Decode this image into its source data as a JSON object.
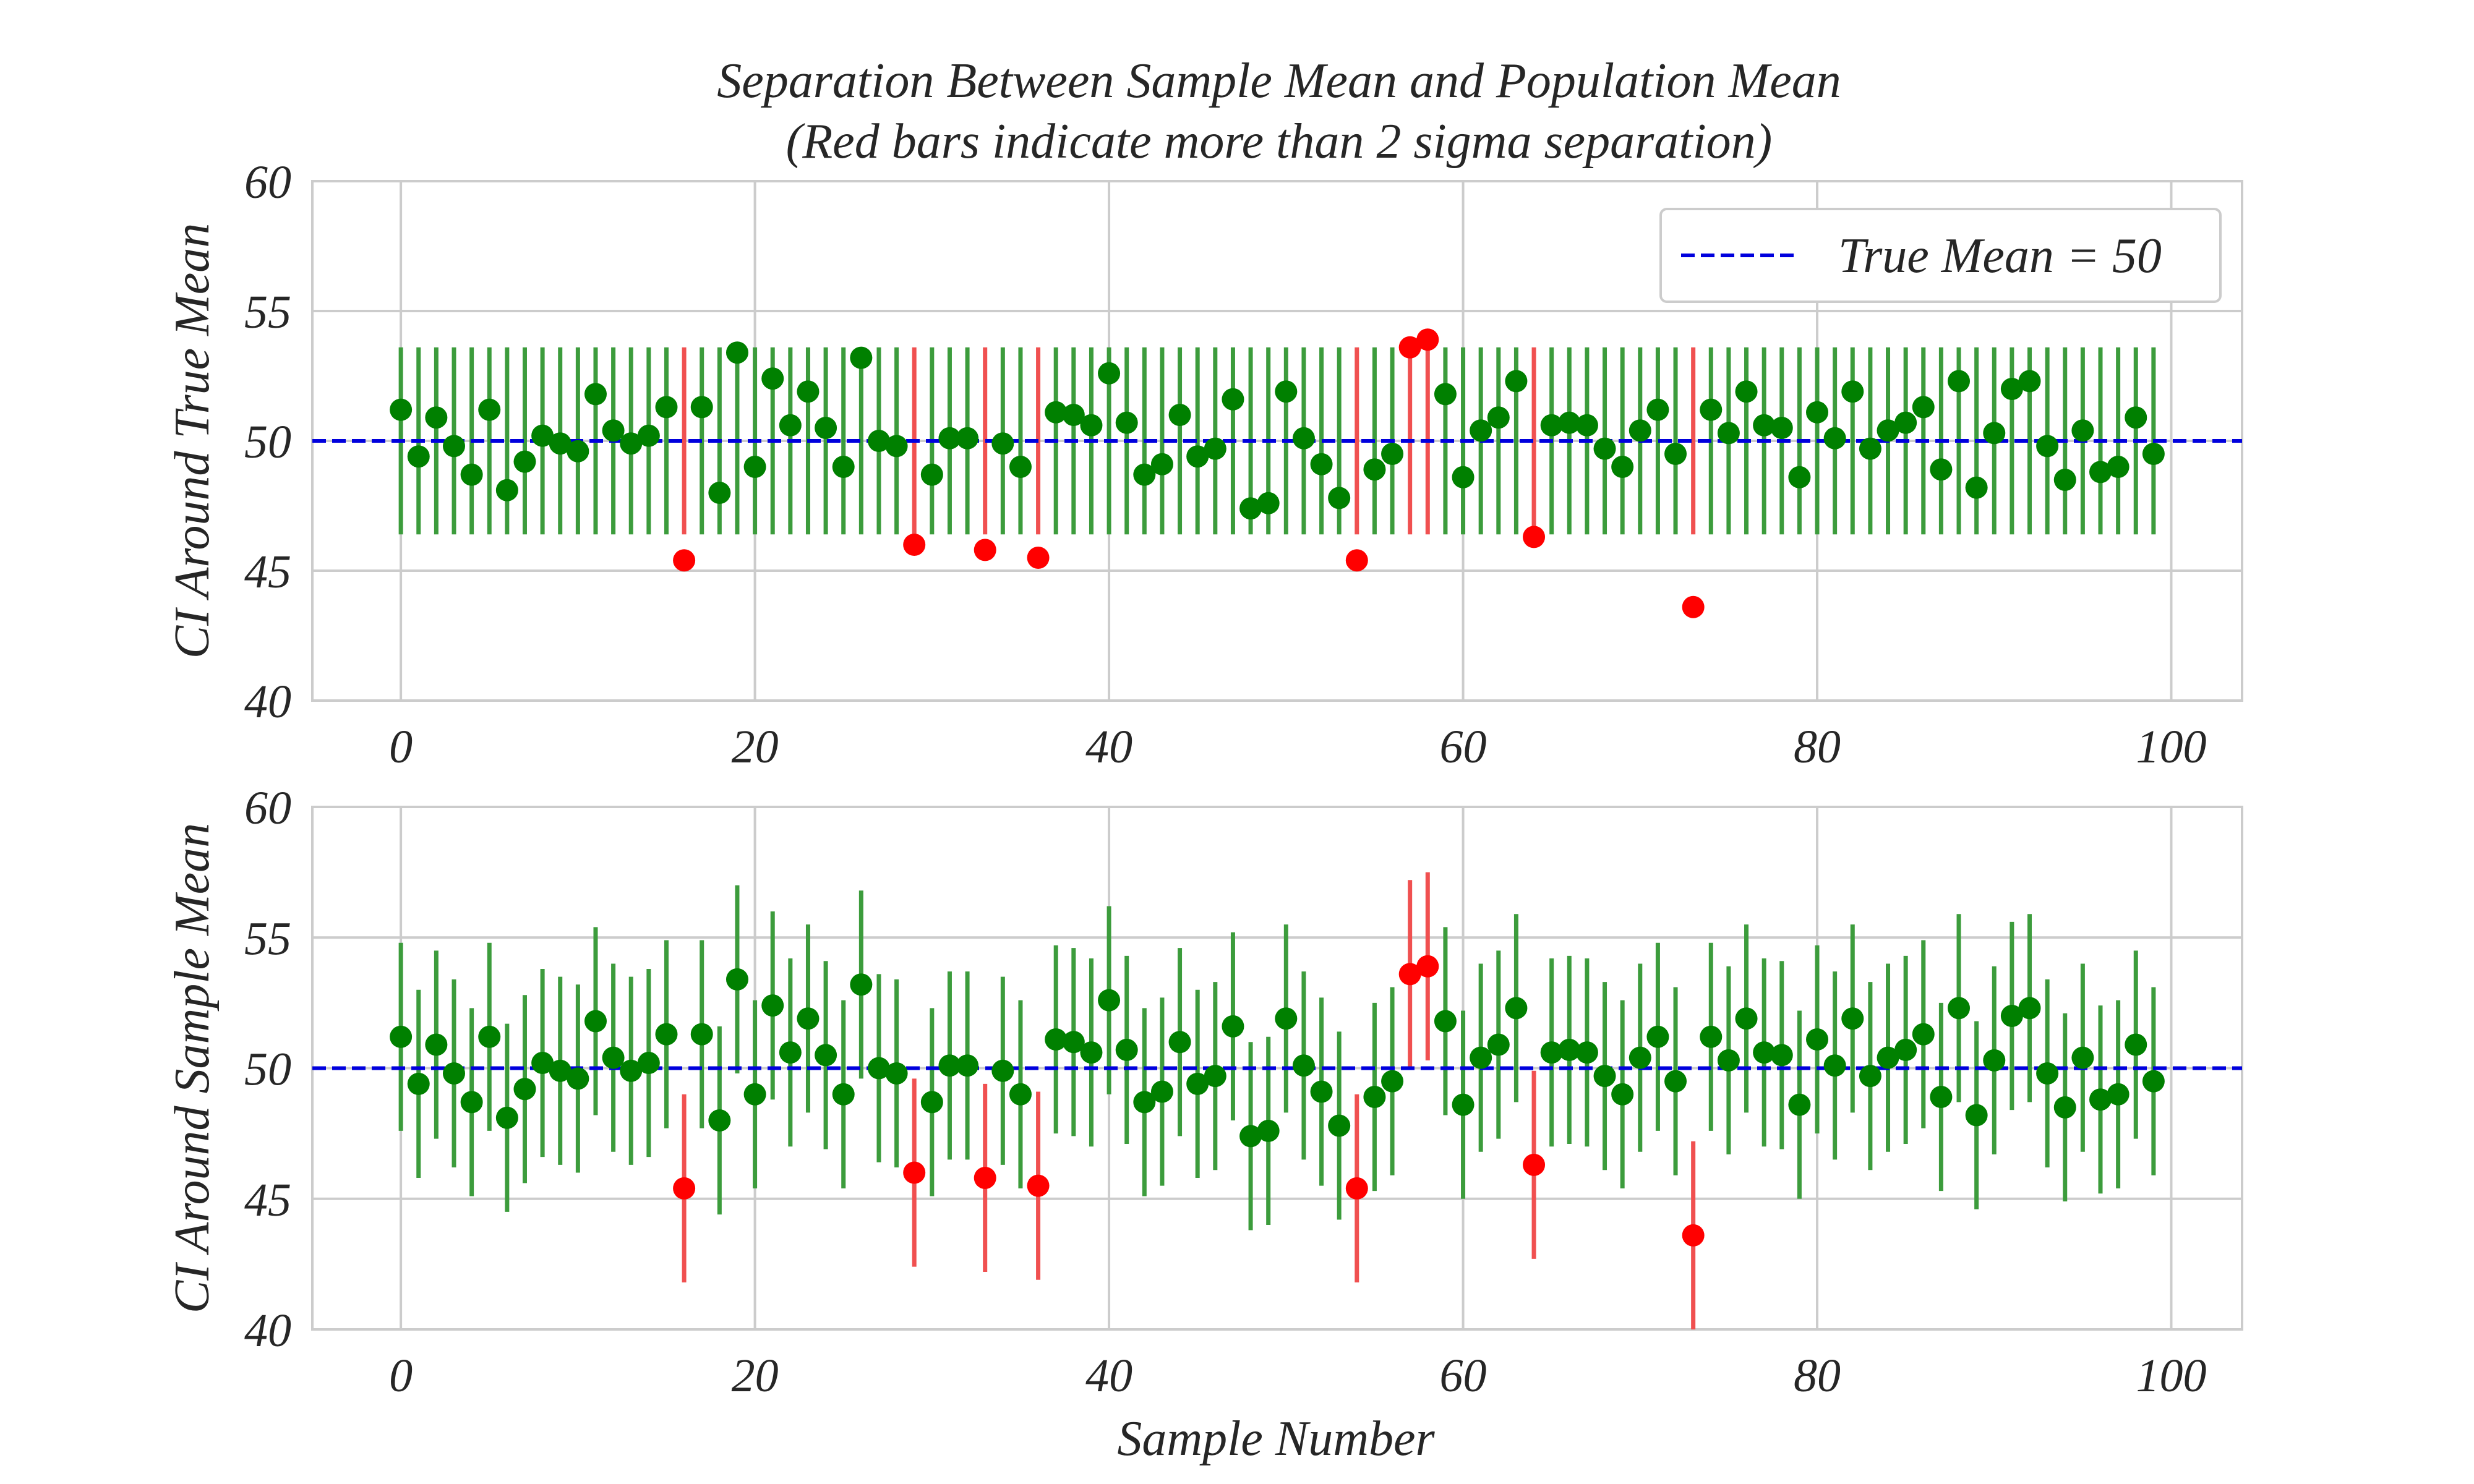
{
  "chart_data": {
    "type": "scatter",
    "title": "Separation Between Sample Mean and Population Mean",
    "subtitle": "(Red bars indicate more than 2 sigma separation)",
    "xlabel": "Sample Number",
    "true_mean": 50,
    "half_width": 3.6,
    "xlim": [
      -5,
      104
    ],
    "ylim": [
      40,
      60
    ],
    "x_ticks": [
      0,
      20,
      40,
      60,
      80,
      100
    ],
    "y_ticks": [
      40,
      45,
      50,
      55,
      60
    ],
    "grid": true,
    "legend_position": "top-right",
    "legend_label": "True Mean = 50",
    "colors": {
      "within": "#008000",
      "within_bar": "#3c9c3c",
      "outside": "#ff0000",
      "outside_bar": "#f05050",
      "mean_line": "#0000dd",
      "grid": "#cccccc",
      "axes": "#cccccc"
    },
    "panels": [
      {
        "name": "top",
        "ylabel": "CI Around True Mean",
        "interval_center": "true_mean"
      },
      {
        "name": "bottom",
        "ylabel": "CI Around Sample Mean",
        "interval_center": "sample_mean"
      }
    ],
    "sample_means": [
      51.2,
      49.4,
      50.9,
      49.8,
      48.7,
      51.2,
      48.1,
      49.2,
      50.2,
      49.9,
      49.6,
      51.8,
      50.4,
      49.9,
      50.2,
      51.3,
      45.4,
      51.3,
      48.0,
      53.4,
      49.0,
      52.4,
      50.6,
      51.9,
      50.5,
      49.0,
      53.2,
      50.0,
      49.8,
      46.0,
      48.7,
      50.1,
      50.1,
      45.8,
      49.9,
      49.0,
      45.5,
      51.1,
      51.0,
      50.6,
      52.6,
      50.7,
      48.7,
      49.1,
      51.0,
      49.4,
      49.7,
      51.6,
      47.4,
      47.6,
      51.9,
      50.1,
      49.1,
      47.8,
      45.4,
      48.9,
      49.5,
      53.6,
      53.9,
      51.8,
      48.6,
      50.4,
      50.9,
      52.3,
      46.3,
      50.6,
      50.7,
      50.6,
      49.7,
      49.0,
      50.4,
      51.2,
      49.5,
      43.6,
      51.2,
      50.3,
      51.9,
      50.6,
      50.5,
      48.6,
      51.1,
      50.1,
      51.9,
      49.7,
      50.4,
      50.7,
      51.3,
      48.9,
      52.3,
      48.2,
      50.3,
      52.0,
      52.3,
      49.8,
      48.5,
      50.4,
      48.8,
      49.0,
      50.9,
      49.5
    ]
  }
}
